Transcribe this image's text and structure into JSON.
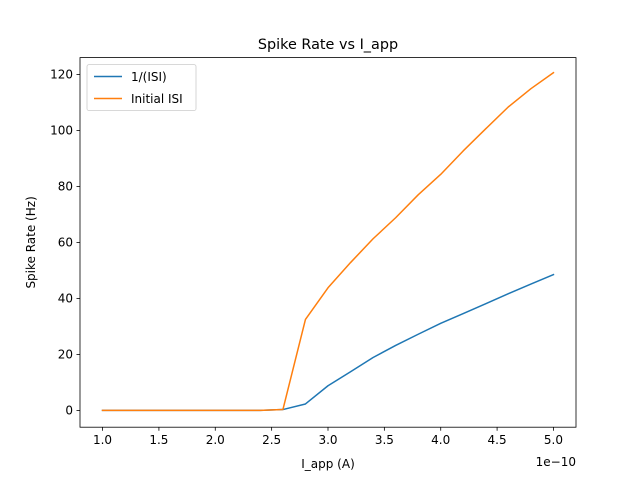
{
  "chart_data": {
    "type": "line",
    "title": "Spike Rate vs I_app",
    "xlabel": "I_app (A)",
    "ylabel": "Spike Rate (Hz)",
    "x_offset_label": "1e−10",
    "xlim": [
      8e-11,
      5.2e-10
    ],
    "ylim": [
      -6,
      126
    ],
    "xticks": [
      1e-10,
      1.5e-10,
      2e-10,
      2.5e-10,
      3e-10,
      3.5e-10,
      4e-10,
      4.5e-10,
      5e-10
    ],
    "xtick_labels": [
      "1.0",
      "1.5",
      "2.0",
      "2.5",
      "3.0",
      "3.5",
      "4.0",
      "4.5",
      "5.0"
    ],
    "yticks": [
      0,
      20,
      40,
      60,
      80,
      100,
      120
    ],
    "ytick_labels": [
      "0",
      "20",
      "40",
      "60",
      "80",
      "100",
      "120"
    ],
    "grid": false,
    "legend_position": "top-left",
    "x": [
      1e-10,
      1.2e-10,
      1.4e-10,
      1.6e-10,
      1.8e-10,
      2e-10,
      2.2e-10,
      2.4e-10,
      2.6e-10,
      2.8e-10,
      3e-10,
      3.2e-10,
      3.4e-10,
      3.6e-10,
      3.8e-10,
      4e-10,
      4.2e-10,
      4.4e-10,
      4.6e-10,
      4.8e-10,
      5e-10
    ],
    "series": [
      {
        "name": "1/(ISI)",
        "color": "#1f77b4",
        "values": [
          0,
          0,
          0,
          0,
          0,
          0,
          0,
          0,
          0.3,
          2.3,
          8.8,
          13.8,
          18.9,
          23.2,
          27.2,
          31.1,
          34.6,
          38.1,
          41.7,
          45.1,
          48.5
        ]
      },
      {
        "name": "Initial ISI",
        "color": "#ff7f0e",
        "values": [
          0,
          0,
          0,
          0,
          0,
          0,
          0,
          0,
          0.3,
          32.5,
          43.8,
          52.8,
          61.3,
          68.8,
          77.0,
          84.3,
          92.7,
          100.6,
          108.4,
          114.9,
          120.6
        ]
      }
    ]
  }
}
